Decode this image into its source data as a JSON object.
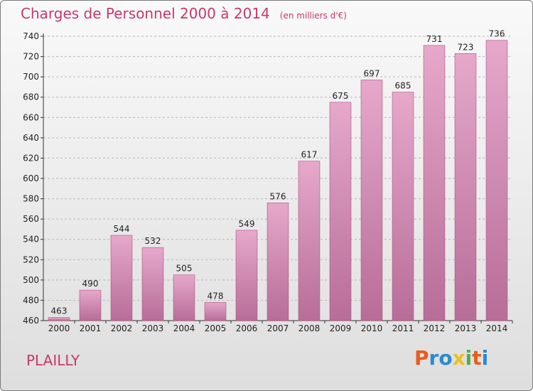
{
  "header": {
    "title": "Charges de Personnel 2000 à 2014",
    "subtitle": "(en milliers d'€)"
  },
  "footer": {
    "commune": "PLAILLY",
    "logo": "Proxiti"
  },
  "colors": {
    "bar_top": "#e6a8cb",
    "bar_bottom": "#b76d98",
    "bar_stroke": "#b0507f",
    "title": "#c8386a",
    "logo_letters": [
      "#e85c1e",
      "#2a8ad0",
      "#2a8ad0",
      "#e8c21e",
      "#4caf50",
      "#e85c1e",
      "#2a8ad0"
    ]
  },
  "chart_data": {
    "type": "bar",
    "title": "Charges de Personnel 2000 à 2014",
    "subtitle": "(en milliers d'€)",
    "categories": [
      "2000",
      "2001",
      "2002",
      "2003",
      "2004",
      "2005",
      "2006",
      "2007",
      "2008",
      "2009",
      "2010",
      "2011",
      "2012",
      "2013",
      "2014"
    ],
    "values": [
      463,
      490,
      544,
      532,
      505,
      478,
      549,
      576,
      617,
      675,
      697,
      685,
      731,
      723,
      736
    ],
    "ylim": [
      460,
      740
    ],
    "yticks": [
      460,
      480,
      500,
      520,
      540,
      560,
      580,
      600,
      620,
      640,
      660,
      680,
      700,
      720,
      740
    ],
    "grid": true
  }
}
